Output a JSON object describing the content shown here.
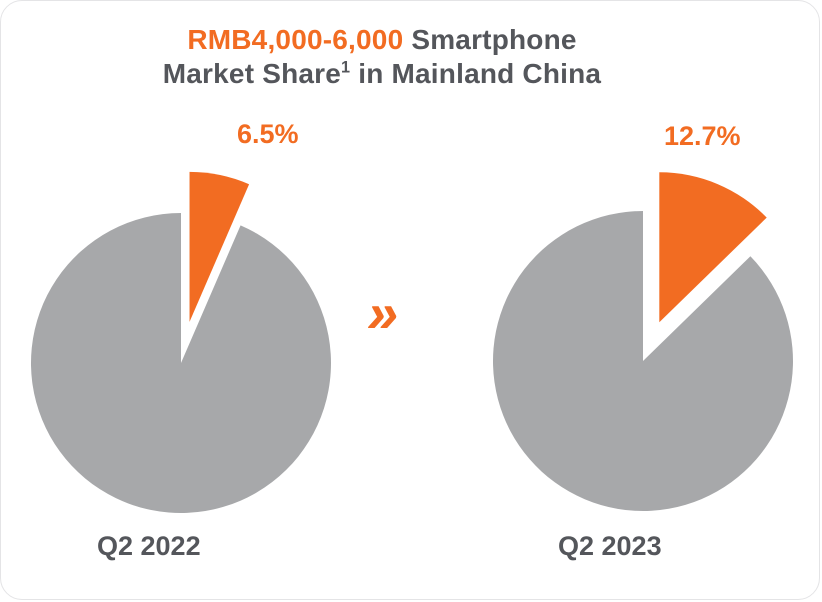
{
  "header": {
    "highlight": "RMB4,000-6,000",
    "line1_rest": " Smartphone",
    "line2_before_sup": "Market Share",
    "footnote_marker": "1",
    "line2_after_sup": " in Mainland China"
  },
  "arrow": {
    "glyph": "»"
  },
  "colors": {
    "accent_orange": "#f26c22",
    "pie_gray": "#a7a8aa",
    "text_dark": "#54565b"
  },
  "chart_data": [
    {
      "type": "pie",
      "title": "Q2 2022",
      "slices": [
        {
          "name": "RMB4,000-6,000 smartphone share",
          "value": 6.5,
          "label": "6.5%",
          "color": "#f26c22",
          "exploded": true
        },
        {
          "name": "Rest of market",
          "value": 93.5,
          "label": "",
          "color": "#a7a8aa",
          "exploded": false
        }
      ]
    },
    {
      "type": "pie",
      "title": "Q2 2023",
      "slices": [
        {
          "name": "RMB4,000-6,000 smartphone share",
          "value": 12.7,
          "label": "12.7%",
          "color": "#f26c22",
          "exploded": true
        },
        {
          "name": "Rest of market",
          "value": 87.3,
          "label": "",
          "color": "#a7a8aa",
          "exploded": false
        }
      ]
    }
  ]
}
